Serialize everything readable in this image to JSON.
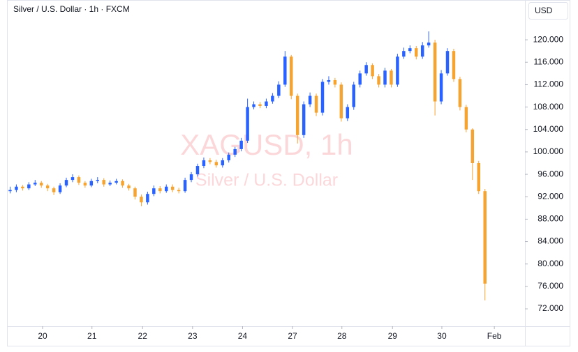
{
  "chart_data": {
    "type": "candlestick",
    "title": "Silver / U.S. Dollar · 1h · FXCM",
    "watermark": "XAGUSD, 1h",
    "watermark_subtitle": "Silver / U.S. Dollar",
    "currency": "USD",
    "up_color": "#2962ff",
    "down_color": "#f5a331",
    "open": [
      93.0,
      93.2,
      93.8,
      93.5,
      94.2,
      94.5,
      94.0,
      93.5,
      92.8,
      94.0,
      95.0,
      95.5,
      94.5,
      94.0,
      94.8,
      95.0,
      94.2,
      94.5,
      94.8,
      94.0,
      93.5,
      92.0,
      91.0,
      92.5,
      93.5,
      93.0,
      93.8,
      93.2,
      93.0,
      95.0,
      96.0,
      97.5,
      98.5,
      98.2,
      97.6,
      98.5,
      99.5,
      100.5,
      102.0,
      108.0,
      108.5,
      108.2,
      109.0,
      110.0,
      112.0,
      117.0,
      110.0,
      103.0,
      108.5,
      110.0,
      107.0,
      112.5,
      112.8,
      112.0,
      106.0,
      108.0,
      112.0,
      114.0,
      115.5,
      113.5,
      112.0,
      114.5,
      112.0,
      117.0,
      118.0,
      118.5,
      117.0,
      119.0,
      119.5,
      109.0,
      114.0,
      118.0,
      113.0,
      108.0,
      104.0,
      98.0,
      93.0
    ],
    "high": [
      93.8,
      94.2,
      94.1,
      94.6,
      95.0,
      94.8,
      94.3,
      93.8,
      94.4,
      95.4,
      96.0,
      95.8,
      94.8,
      95.2,
      95.5,
      95.3,
      94.9,
      95.2,
      95.1,
      94.3,
      93.8,
      92.4,
      92.9,
      94.0,
      93.9,
      94.2,
      94.2,
      93.6,
      95.4,
      96.4,
      97.9,
      99.0,
      98.9,
      98.6,
      98.9,
      99.9,
      100.9,
      102.5,
      109.5,
      109.0,
      108.9,
      109.5,
      110.5,
      112.6,
      118.0,
      117.3,
      110.4,
      109.0,
      110.6,
      110.4,
      113.0,
      113.5,
      113.2,
      112.4,
      108.5,
      112.5,
      114.5,
      116.0,
      115.8,
      113.9,
      115.0,
      114.8,
      117.5,
      118.6,
      119.0,
      118.9,
      119.6,
      121.5,
      120.0,
      114.6,
      118.5,
      118.4,
      113.4,
      108.4,
      104.2,
      98.4,
      93.4
    ],
    "low": [
      92.6,
      92.8,
      93.1,
      93.2,
      93.9,
      93.6,
      93.0,
      92.3,
      92.5,
      93.7,
      94.6,
      94.1,
      93.6,
      93.7,
      94.4,
      93.8,
      93.9,
      94.2,
      93.6,
      93.1,
      91.5,
      90.3,
      90.6,
      92.1,
      92.6,
      92.7,
      92.8,
      92.6,
      92.7,
      94.6,
      95.6,
      97.1,
      97.8,
      97.2,
      97.2,
      98.1,
      99.1,
      100.1,
      101.6,
      107.6,
      107.8,
      107.8,
      108.6,
      109.6,
      111.6,
      109.4,
      101.5,
      102.5,
      108.0,
      106.4,
      106.5,
      112.0,
      111.5,
      105.4,
      105.5,
      107.5,
      111.5,
      113.6,
      113.0,
      111.5,
      111.5,
      111.5,
      111.6,
      116.6,
      117.6,
      116.5,
      116.6,
      118.6,
      106.5,
      108.5,
      113.6,
      112.5,
      107.4,
      103.5,
      95.0,
      92.5,
      73.5
    ],
    "close": [
      93.2,
      93.8,
      93.5,
      94.2,
      94.5,
      94.0,
      93.5,
      92.8,
      94.0,
      95.0,
      95.5,
      94.5,
      94.0,
      94.8,
      95.0,
      94.2,
      94.5,
      94.8,
      94.0,
      93.5,
      92.0,
      91.0,
      92.5,
      93.5,
      93.0,
      93.8,
      93.2,
      93.0,
      95.0,
      96.0,
      97.5,
      98.5,
      98.2,
      97.6,
      98.5,
      99.5,
      100.5,
      102.0,
      108.0,
      108.5,
      108.2,
      109.0,
      110.0,
      112.0,
      117.0,
      110.0,
      103.0,
      108.5,
      110.0,
      107.0,
      112.5,
      112.8,
      112.0,
      106.0,
      108.0,
      112.0,
      114.0,
      115.5,
      113.5,
      112.0,
      114.5,
      112.0,
      117.0,
      118.0,
      118.5,
      117.0,
      119.0,
      119.5,
      109.0,
      114.0,
      118.0,
      113.0,
      108.0,
      104.0,
      98.0,
      93.0,
      76.5
    ],
    "xlim": [
      -0.5,
      82.4
    ],
    "xticks": [
      {
        "value": 5.2,
        "label": "20"
      },
      {
        "value": 13.1,
        "label": "21"
      },
      {
        "value": 21.2,
        "label": "22"
      },
      {
        "value": 29.2,
        "label": "23"
      },
      {
        "value": 37.2,
        "label": "24"
      },
      {
        "value": 45.2,
        "label": "27"
      },
      {
        "value": 53.1,
        "label": "28"
      },
      {
        "value": 61.2,
        "label": "29"
      },
      {
        "value": 69.1,
        "label": "30"
      },
      {
        "value": 77.5,
        "label": "Feb"
      }
    ],
    "ylim": [
      68.9,
      127.1
    ],
    "yticks": [
      {
        "value": 72,
        "label": "72.000"
      },
      {
        "value": 76,
        "label": "76.000"
      },
      {
        "value": 80,
        "label": "80.000"
      },
      {
        "value": 84,
        "label": "84.000"
      },
      {
        "value": 88,
        "label": "88.000"
      },
      {
        "value": 92,
        "label": "92.000"
      },
      {
        "value": 96,
        "label": "96.000"
      },
      {
        "value": 100,
        "label": "100.000"
      },
      {
        "value": 104,
        "label": "104.000"
      },
      {
        "value": 108,
        "label": "108.000"
      },
      {
        "value": 112,
        "label": "112.000"
      },
      {
        "value": 116,
        "label": "116.000"
      },
      {
        "value": 120,
        "label": "120.000"
      }
    ]
  }
}
